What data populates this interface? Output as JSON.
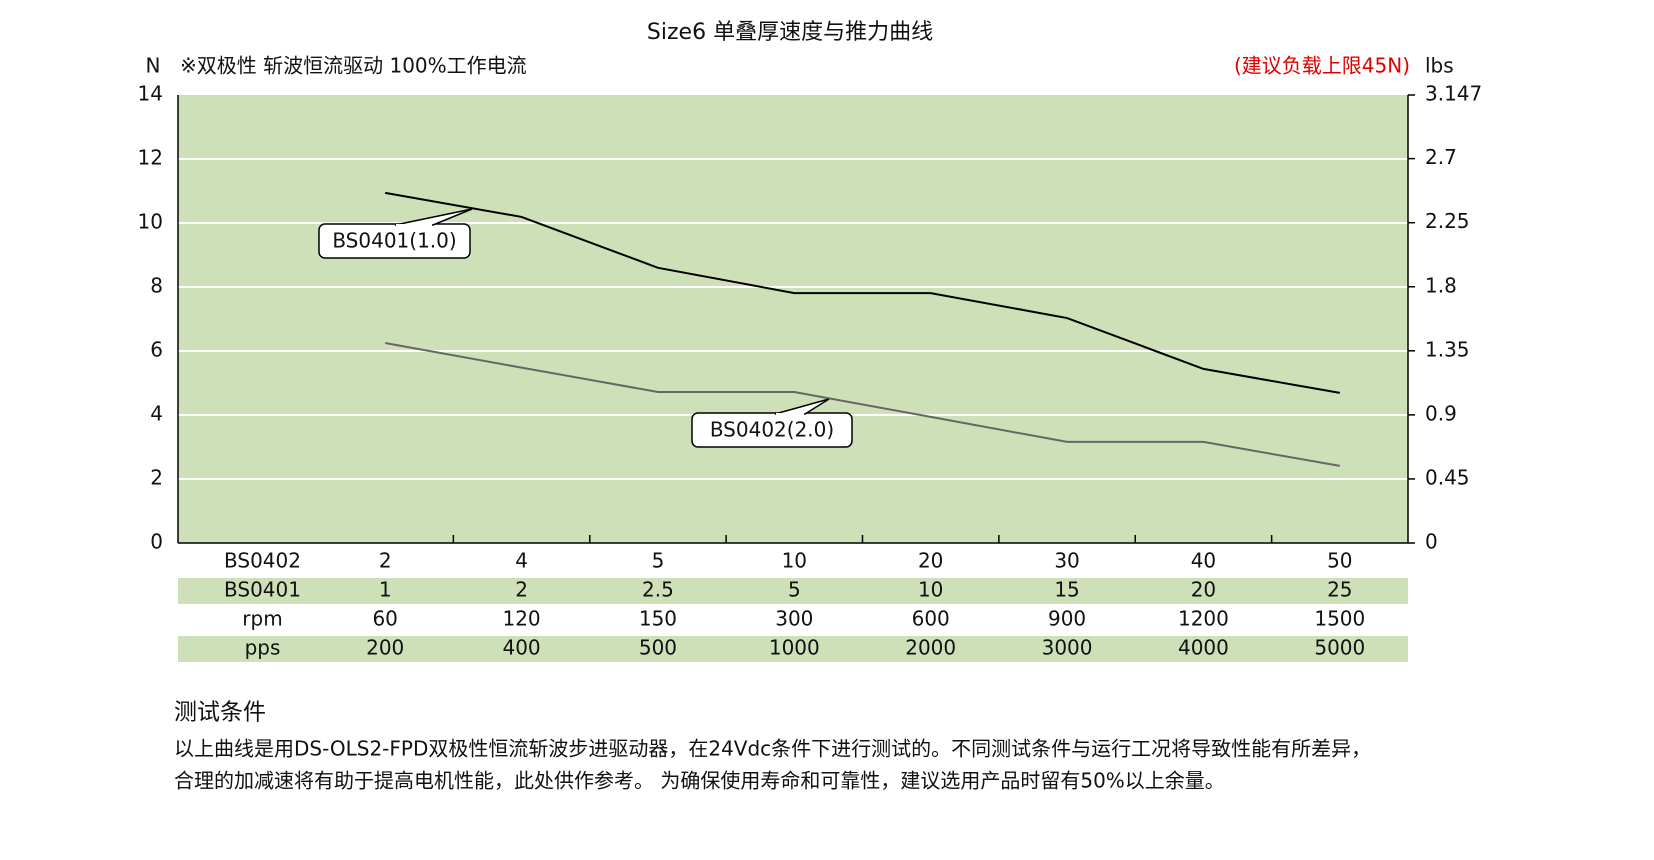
{
  "chart_data": {
    "type": "line",
    "title": "Size6 单叠厚速度与推力曲线",
    "y_label": "N",
    "y2_label": "lbs",
    "note": "※双极性 斩波恒流驱动 100%工作电流",
    "limit_note": "(建议负载上限45N)",
    "categories": [
      "200",
      "400",
      "500",
      "1000",
      "2000",
      "3000",
      "4000",
      "5000"
    ],
    "x_rows": [
      {
        "name": "BS0402",
        "values": [
          2,
          4,
          5,
          10,
          20,
          30,
          40,
          50
        ]
      },
      {
        "name": "BS0401",
        "values": [
          1,
          2,
          2.5,
          5,
          10,
          15,
          20,
          25
        ]
      },
      {
        "name": "rpm",
        "values": [
          60,
          120,
          150,
          300,
          600,
          900,
          1200,
          1500
        ]
      },
      {
        "name": "pps",
        "values": [
          200,
          400,
          500,
          1000,
          2000,
          3000,
          4000,
          5000
        ]
      }
    ],
    "series": [
      {
        "name": "BS0401(1.0)",
        "color": "#000000",
        "values": [
          10.94,
          10.19,
          8.6,
          7.81,
          7.81,
          7.03,
          5.44,
          4.69
        ]
      },
      {
        "name": "BS0402(2.0)",
        "color": "#666666",
        "values": [
          6.25,
          5.48,
          4.72,
          4.72,
          3.94,
          3.16,
          3.16,
          2.41
        ]
      }
    ],
    "ylim": [
      0,
      14
    ],
    "yticks": [
      0,
      2,
      4,
      6,
      8,
      10,
      12,
      14
    ],
    "y2lim": [
      0,
      3.147
    ],
    "y2ticks": [
      0,
      0.45,
      0.9,
      1.35,
      1.8,
      2.25,
      2.7,
      3.147
    ],
    "grid": true,
    "background": "#cde0b8"
  },
  "notes": {
    "heading": "测试条件",
    "lines": [
      "以上曲线是用DS-OLS2-FPD双极性恒流斩波步进驱动器，在24Vdc条件下进行测试的。不同测试条件与运行工况将导致性能有所差异，",
      "合理的加减速将有助于提高电机性能，此处供作参考。 为确保使用寿命和可靠性，建议选用产品时留有50%以上余量。"
    ]
  }
}
